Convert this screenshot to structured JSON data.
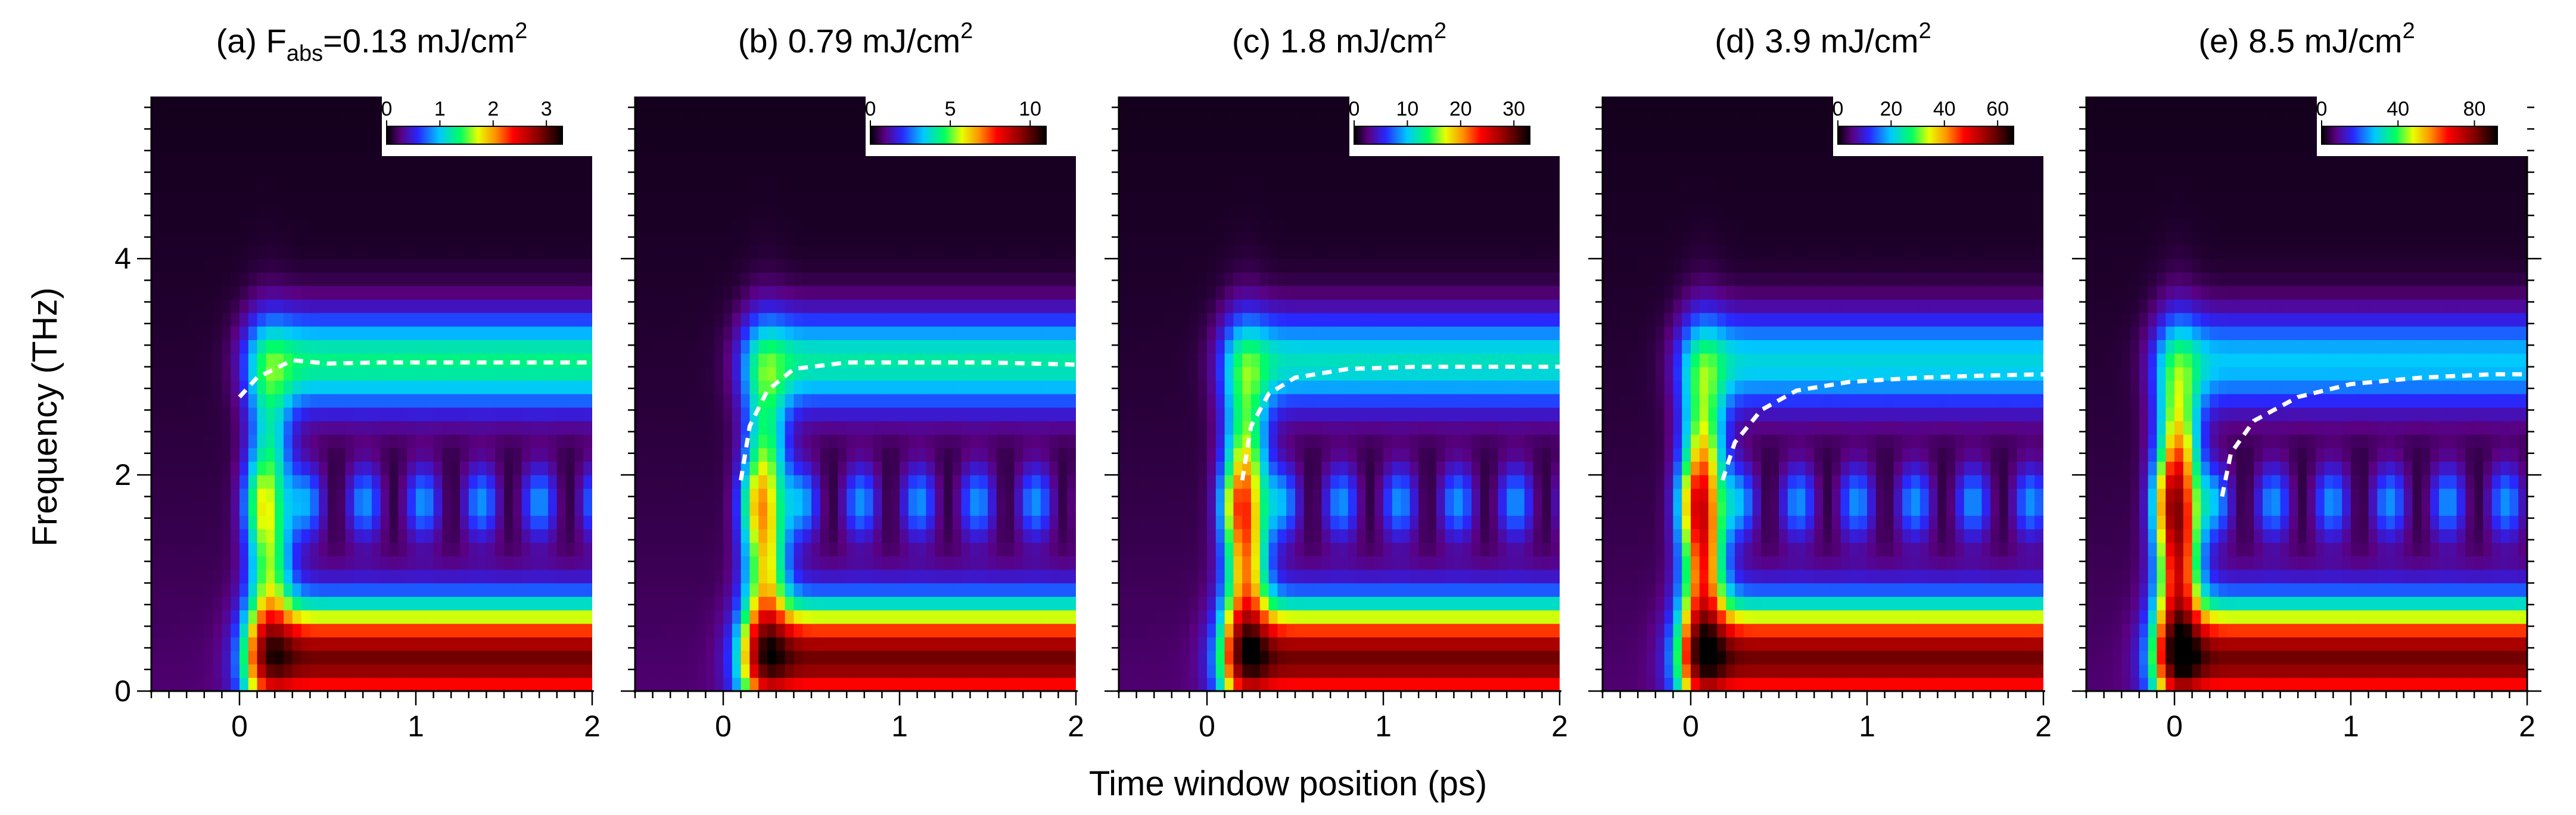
{
  "figure": {
    "ylabel": "Frequency (THz)",
    "xlabel": "Time window position (ps)"
  },
  "chart_data": [
    {
      "type": "heatmap",
      "panel_label": "(a)",
      "title_parts": [
        "(a)  F",
        "abs",
        "=0.13 mJ/cm",
        "2"
      ],
      "fluence_mJ_cm2": 0.13,
      "x_range_ps": [
        -0.5,
        2
      ],
      "y_range_THz": [
        0,
        5.5
      ],
      "x_tick_labels": [
        "0",
        "1",
        "2"
      ],
      "y_tick_labels": [
        "0",
        "2",
        "4"
      ],
      "colorbar": {
        "min": 0,
        "max": 3.3,
        "tick_labels": [
          "0",
          "1",
          "2",
          "3"
        ],
        "tick_values": [
          0,
          1,
          2,
          3
        ]
      },
      "onset_ps": 0.05,
      "peak_frequency_curve": {
        "x_ps": [
          0.0,
          0.1,
          0.3,
          0.5,
          0.8,
          1.2,
          1.6,
          2.0
        ],
        "y_THz": [
          2.72,
          2.9,
          3.06,
          3.03,
          3.04,
          3.04,
          3.04,
          3.04
        ]
      }
    },
    {
      "type": "heatmap",
      "panel_label": "(b)",
      "title_parts": [
        "(b)  0.79 mJ/cm",
        "2"
      ],
      "fluence_mJ_cm2": 0.79,
      "x_range_ps": [
        -0.5,
        2
      ],
      "y_range_THz": [
        0,
        5.5
      ],
      "x_tick_labels": [
        "0",
        "1",
        "2"
      ],
      "y_tick_labels": [
        "0",
        "2",
        "4"
      ],
      "colorbar": {
        "min": 0,
        "max": 11,
        "tick_labels": [
          "0",
          "5",
          "10"
        ],
        "tick_values": [
          0,
          5,
          10
        ]
      },
      "onset_ps": 0.12,
      "peak_frequency_curve": {
        "x_ps": [
          0.1,
          0.15,
          0.25,
          0.4,
          0.7,
          1.0,
          1.5,
          2.0
        ],
        "y_THz": [
          1.95,
          2.45,
          2.78,
          2.98,
          3.04,
          3.04,
          3.04,
          3.02
        ]
      }
    },
    {
      "type": "heatmap",
      "panel_label": "(c)",
      "title_parts": [
        "(c)  1.8 mJ/cm",
        "2"
      ],
      "fluence_mJ_cm2": 1.8,
      "x_range_ps": [
        -0.5,
        2
      ],
      "y_range_THz": [
        0,
        5.5
      ],
      "x_tick_labels": [
        "0",
        "1",
        "2"
      ],
      "y_tick_labels": [
        "0",
        "2",
        "4"
      ],
      "colorbar": {
        "min": 0,
        "max": 33,
        "tick_labels": [
          "0",
          "10",
          "20",
          "30"
        ],
        "tick_values": [
          0,
          10,
          20,
          30
        ]
      },
      "onset_ps": 0.1,
      "peak_frequency_curve": {
        "x_ps": [
          0.2,
          0.25,
          0.35,
          0.5,
          0.8,
          1.2,
          1.6,
          2.0
        ],
        "y_THz": [
          1.95,
          2.45,
          2.75,
          2.9,
          2.98,
          3.0,
          3.0,
          3.0
        ]
      }
    },
    {
      "type": "heatmap",
      "panel_label": "(d)",
      "title_parts": [
        "(d)  3.9 mJ/cm",
        "2"
      ],
      "fluence_mJ_cm2": 3.9,
      "x_range_ps": [
        -0.5,
        2
      ],
      "y_range_THz": [
        0,
        5.5
      ],
      "x_tick_labels": [
        "0",
        "1",
        "2"
      ],
      "y_tick_labels": [
        "0",
        "2",
        "4"
      ],
      "colorbar": {
        "min": 0,
        "max": 66,
        "tick_labels": [
          "0",
          "20",
          "40",
          "60"
        ],
        "tick_values": [
          0,
          20,
          40,
          60
        ]
      },
      "onset_ps": -0.05,
      "peak_frequency_curve": {
        "x_ps": [
          0.18,
          0.25,
          0.4,
          0.6,
          0.9,
          1.3,
          1.7,
          2.0
        ],
        "y_THz": [
          1.95,
          2.3,
          2.6,
          2.78,
          2.86,
          2.9,
          2.92,
          2.93
        ]
      }
    },
    {
      "type": "heatmap",
      "panel_label": "(e)",
      "title_parts": [
        "(e)  8.5 mJ/cm",
        "2"
      ],
      "fluence_mJ_cm2": 8.5,
      "x_range_ps": [
        -0.5,
        2
      ],
      "y_range_THz": [
        0,
        5.5
      ],
      "x_tick_labels": [
        "0",
        "1",
        "2"
      ],
      "y_tick_labels": [
        "0",
        "2",
        "4"
      ],
      "colorbar": {
        "min": 0,
        "max": 92,
        "tick_labels": [
          "0",
          "40",
          "80"
        ],
        "tick_values": [
          0,
          40,
          80
        ]
      },
      "onset_ps": -0.1,
      "peak_frequency_curve": {
        "x_ps": [
          0.27,
          0.32,
          0.45,
          0.7,
          1.0,
          1.4,
          1.8,
          2.0
        ],
        "y_THz": [
          1.8,
          2.2,
          2.5,
          2.72,
          2.84,
          2.9,
          2.93,
          2.93
        ]
      }
    }
  ]
}
